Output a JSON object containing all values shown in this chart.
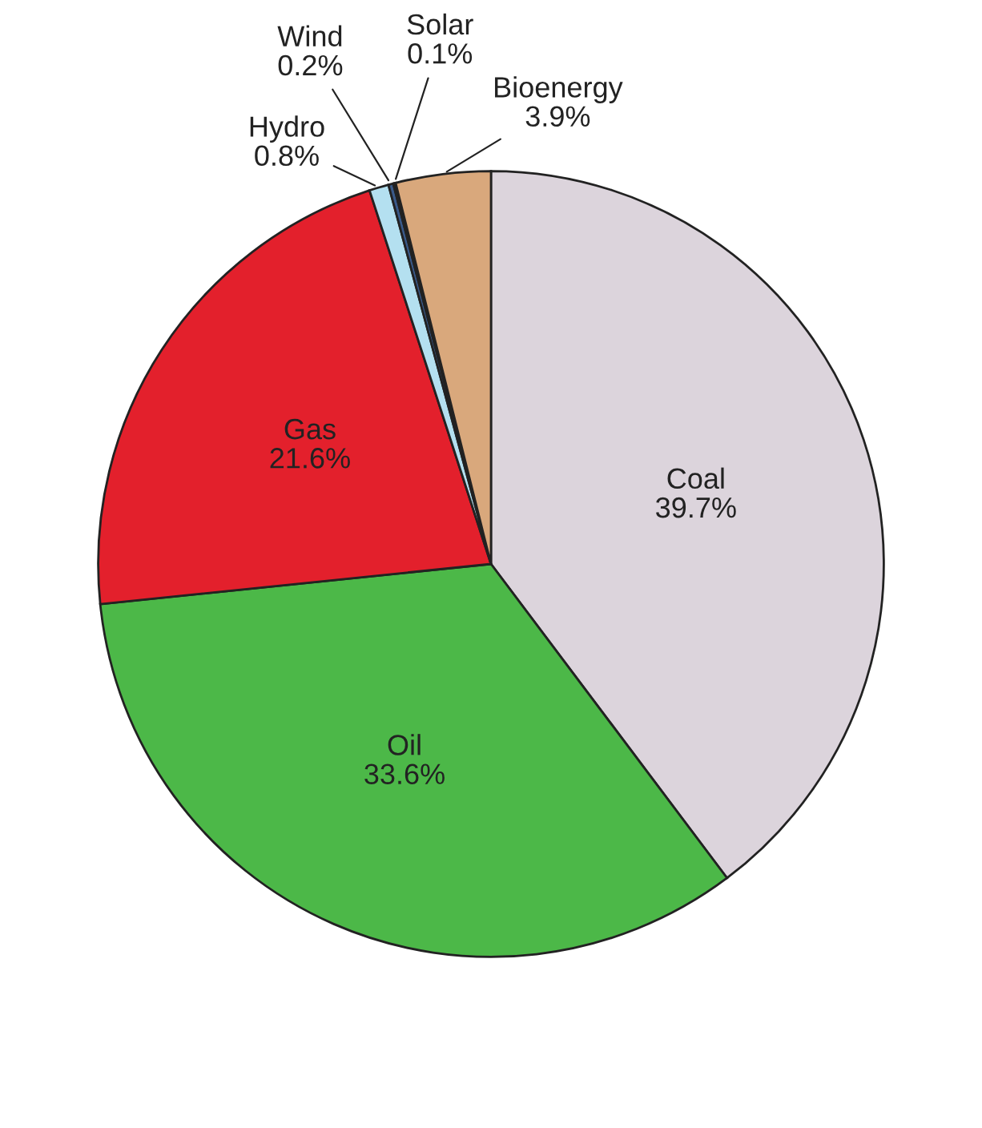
{
  "chart_data": {
    "type": "pie",
    "categories": [
      "Coal",
      "Oil",
      "Gas",
      "Hydro",
      "Wind",
      "Solar",
      "Bioenergy"
    ],
    "values": [
      39.7,
      33.6,
      21.6,
      0.8,
      0.2,
      0.1,
      3.9
    ],
    "colors": [
      "#dcd4dc",
      "#4cb848",
      "#e3202c",
      "#b4e0f0",
      "#3a5a8a",
      "#202020",
      "#d9a87c"
    ],
    "value_labels": [
      "39.7%",
      "33.6%",
      "21.6%",
      "0.8%",
      "0.2%",
      "0.1%",
      "3.9%"
    ],
    "legend": false
  }
}
